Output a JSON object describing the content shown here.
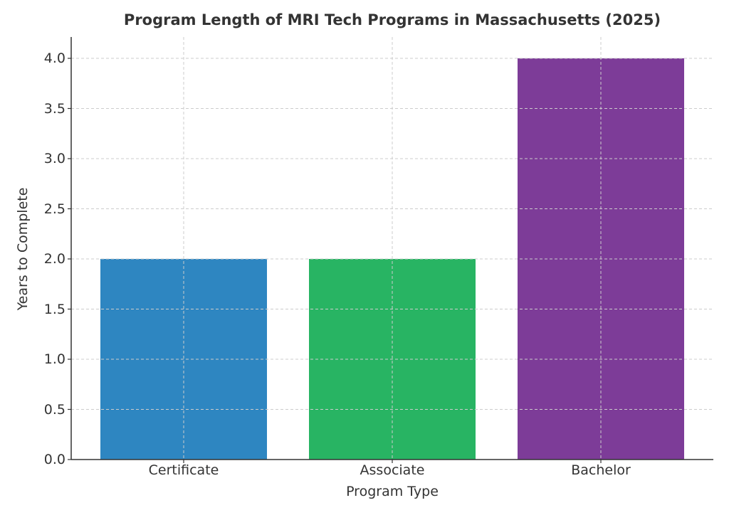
{
  "chart_data": {
    "type": "bar",
    "title": "Program Length of MRI Tech Programs in Massachusetts (2025)",
    "xlabel": "Program Type",
    "ylabel": "Years to Complete",
    "categories": [
      "Certificate",
      "Associate",
      "Bachelor"
    ],
    "values": [
      2,
      2,
      4
    ],
    "colors": [
      "#2e86c1",
      "#28b463",
      "#7d3c98"
    ],
    "ylim": [
      0,
      4.2
    ],
    "yticks": [
      "0.0",
      "0.5",
      "1.0",
      "1.5",
      "2.0",
      "2.5",
      "3.0",
      "3.5",
      "4.0"
    ],
    "grid": true,
    "grid_style": "dashed",
    "legend": null
  }
}
